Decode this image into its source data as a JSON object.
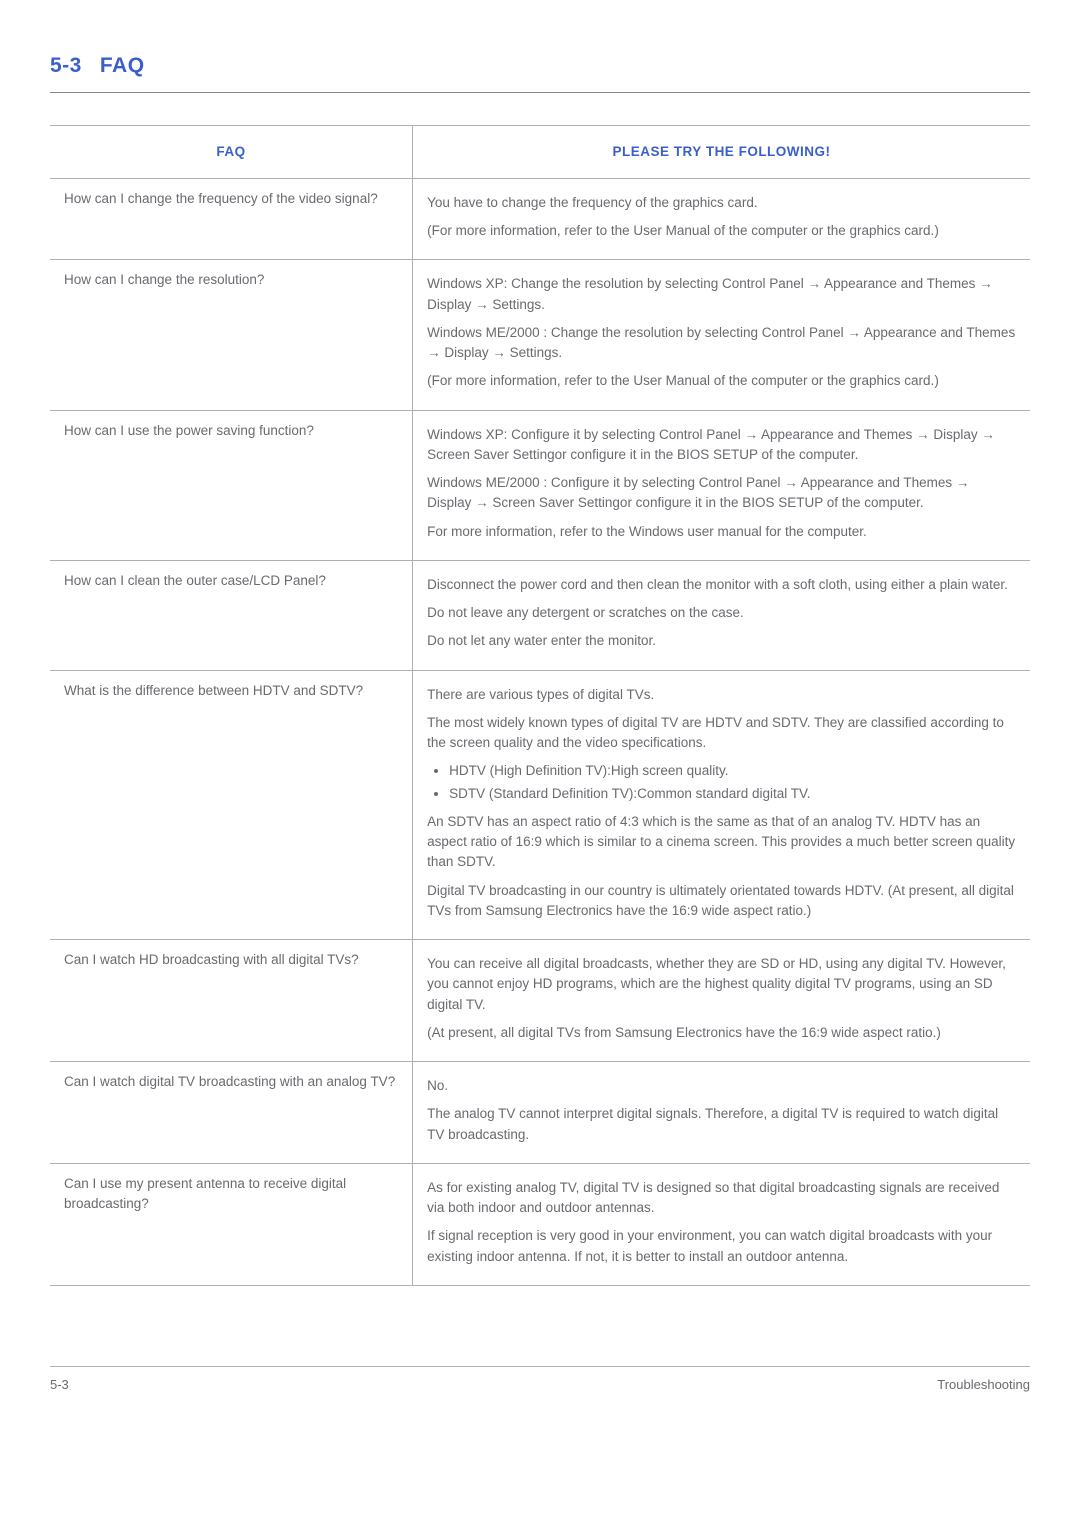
{
  "header": {
    "number": "5-3",
    "title": "FAQ"
  },
  "table": {
    "col_faq": "FAQ",
    "col_try": "PLEASE TRY THE FOLLOWING!"
  },
  "rows": [
    {
      "q": "How can I change the frequency of the video signal?",
      "a": [
        "You have to change the frequency of the graphics card.",
        "(For more information, refer to the User Manual of the computer or the graphics card.)"
      ]
    },
    {
      "q": "How can I change the resolution?",
      "a": [
        "Windows XP: Change the resolution by selecting Control Panel → Appearance and Themes → Display → Settings.",
        "Windows ME/2000 : Change the resolution by selecting Control Panel → Appearance and Themes → Display → Settings.",
        "(For more information, refer to the User Manual of the computer or the graphics card.)"
      ]
    },
    {
      "q": "How can I use the power saving function?",
      "a": [
        "Windows XP: Configure it by selecting Control Panel → Appearance and Themes → Display → Screen Saver Settingor configure it in the BIOS SETUP of the computer.",
        "Windows ME/2000 : Configure it by selecting Control Panel → Appearance and Themes → Display → Screen Saver Settingor configure it in the BIOS SETUP of the computer.",
        "For more information, refer to the Windows user manual for the computer."
      ]
    },
    {
      "q": "How can I clean the outer case/LCD Panel?",
      "a": [
        "Disconnect the power cord and then clean the monitor with a soft cloth, using either a plain water.",
        "Do not leave any detergent or scratches on the case.",
        "Do not let any water enter the monitor."
      ]
    },
    {
      "q": "What is the difference between HDTV and SDTV?",
      "a": [
        "There are various types of digital TVs.",
        "The most widely known types of digital TV are HDTV and SDTV. They are classified according to the screen quality and the video specifications."
      ],
      "bullets": [
        "HDTV (High Definition TV):High screen quality.",
        "SDTV (Standard Definition TV):Common standard digital TV."
      ],
      "a2": [
        "An SDTV has an aspect ratio of 4:3 which is the same as that of an analog TV. HDTV has an aspect ratio of 16:9 which is similar to a cinema screen. This provides a much better screen quality than SDTV.",
        "Digital TV broadcasting in our country is ultimately orientated towards HDTV. (At present, all digital TVs from Samsung Electronics have the 16:9 wide aspect ratio.)"
      ]
    },
    {
      "q": "Can I watch HD broadcasting with all digital TVs?",
      "a": [
        "You can receive all digital broadcasts, whether they are SD or HD, using any digital TV. However, you cannot enjoy HD programs, which are the highest quality digital TV programs, using an SD digital TV.",
        "(At present, all digital TVs from Samsung Electronics have the 16:9 wide aspect ratio.)"
      ]
    },
    {
      "q": "Can I watch digital TV broadcasting with an analog TV?",
      "a": [
        "No.",
        "The analog TV cannot interpret digital signals. Therefore, a digital TV is required to watch digital TV broadcasting."
      ]
    },
    {
      "q": "Can I use my present antenna to receive digital broadcasting?",
      "a": [
        "As for existing analog TV, digital TV is designed so that digital broadcasting signals are received via both indoor and outdoor antennas.",
        "If signal reception is very good in your environment, you can watch digital broadcasts with your existing indoor antenna. If not, it is better to install an outdoor antenna."
      ]
    }
  ],
  "footer": {
    "left": "5-3",
    "right": "Troubleshooting"
  }
}
